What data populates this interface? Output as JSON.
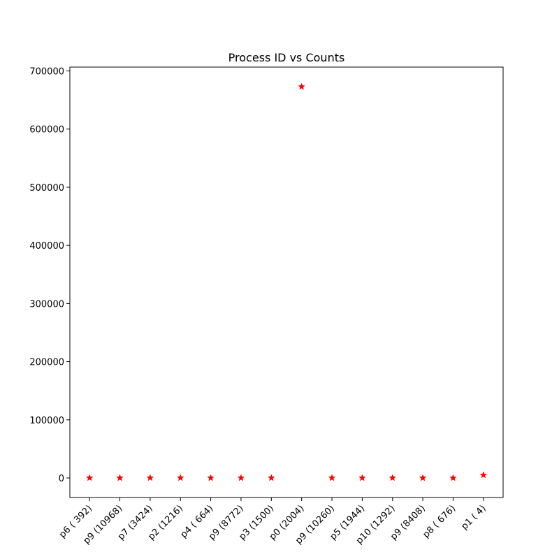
{
  "chart_data": {
    "type": "scatter",
    "title": "Process ID vs Counts",
    "xlabel": "",
    "ylabel": "",
    "categories": [
      "p6 ( 392)",
      "p9 (10968)",
      "p7 (3424)",
      "p2 (1216)",
      "p4 ( 664)",
      "p9 (8772)",
      "p3 (1500)",
      "p0 (2004)",
      "p9 (10260)",
      "p5 (1944)",
      "p10 (1292)",
      "p9 (8408)",
      "p8 ( 676)",
      "p1 ( 4)"
    ],
    "values": [
      120,
      30,
      120,
      220,
      50,
      20,
      60,
      673000,
      40,
      60,
      120,
      30,
      10,
      5000
    ],
    "ylim": [
      -33650,
      706650
    ],
    "yticks": [
      0,
      100000,
      200000,
      300000,
      400000,
      500000,
      600000,
      700000
    ],
    "ytick_labels": [
      "0",
      "100000",
      "200000",
      "300000",
      "400000",
      "500000",
      "600000",
      "700000"
    ],
    "marker": "star",
    "marker_color": "#ff0000",
    "grid": false,
    "legend": "none"
  }
}
